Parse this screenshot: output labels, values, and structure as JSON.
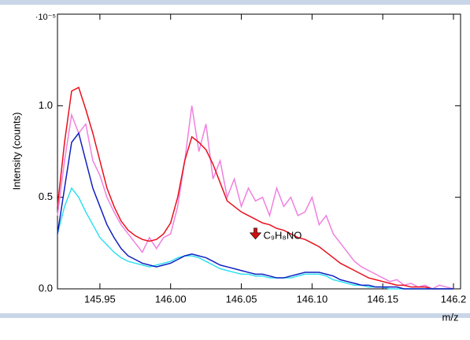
{
  "chart_data": {
    "type": "line",
    "y_axis_label": "Intensity (counts)",
    "y_unit": "·10⁻⁵",
    "x_axis_label": "m/z",
    "xlim": [
      145.92,
      146.205
    ],
    "ylim": [
      0,
      1.5
    ],
    "xticks": [
      145.95,
      {
        "value": 146,
        "label": "146.00"
      },
      146.05,
      {
        "value": 146.1,
        "label": "146.10"
      },
      146.15,
      {
        "value": 146.2,
        "label": "146.2"
      }
    ],
    "yticks": [
      {
        "value": 0,
        "label": "0.0"
      },
      {
        "value": 0.5,
        "label": "0.5"
      },
      {
        "value": 1,
        "label": "1.0"
      }
    ],
    "x": [
      145.92,
      145.925,
      145.93,
      145.935,
      145.94,
      145.945,
      145.95,
      145.955,
      145.96,
      145.965,
      145.97,
      145.975,
      145.98,
      145.985,
      145.99,
      145.995,
      146.0,
      146.005,
      146.01,
      146.015,
      146.02,
      146.025,
      146.03,
      146.035,
      146.04,
      146.045,
      146.05,
      146.055,
      146.06,
      146.065,
      146.07,
      146.075,
      146.08,
      146.085,
      146.09,
      146.095,
      146.1,
      146.105,
      146.11,
      146.115,
      146.12,
      146.125,
      146.13,
      146.135,
      146.14,
      146.145,
      146.15,
      146.155,
      146.16,
      146.165,
      146.17,
      146.175,
      146.18,
      146.185,
      146.19,
      146.195,
      146.2
    ],
    "series": [
      {
        "color": "#f080e0",
        "values": [
          0.4,
          0.7,
          0.95,
          0.85,
          0.9,
          0.7,
          0.62,
          0.5,
          0.42,
          0.35,
          0.3,
          0.25,
          0.2,
          0.28,
          0.22,
          0.28,
          0.3,
          0.45,
          0.7,
          1.0,
          0.75,
          0.9,
          0.6,
          0.7,
          0.5,
          0.6,
          0.45,
          0.55,
          0.48,
          0.5,
          0.4,
          0.55,
          0.45,
          0.5,
          0.4,
          0.42,
          0.5,
          0.35,
          0.4,
          0.3,
          0.25,
          0.2,
          0.15,
          0.12,
          0.1,
          0.08,
          0.06,
          0.04,
          0.05,
          0.02,
          0.03,
          0.01,
          0.02,
          0.0,
          0.02,
          0.01,
          0.0
        ]
      },
      {
        "color": "#e8101c",
        "values": [
          0.45,
          0.8,
          1.08,
          1.1,
          0.98,
          0.85,
          0.7,
          0.55,
          0.45,
          0.37,
          0.32,
          0.29,
          0.27,
          0.26,
          0.27,
          0.3,
          0.36,
          0.5,
          0.7,
          0.83,
          0.8,
          0.76,
          0.68,
          0.58,
          0.48,
          0.45,
          0.42,
          0.4,
          0.38,
          0.36,
          0.35,
          0.33,
          0.32,
          0.3,
          0.28,
          0.27,
          0.25,
          0.23,
          0.2,
          0.17,
          0.14,
          0.12,
          0.1,
          0.08,
          0.06,
          0.05,
          0.04,
          0.03,
          0.02,
          0.02,
          0.01,
          0.01,
          0.01,
          0.0,
          0.0,
          0.0,
          0.0
        ]
      },
      {
        "color": "#30e0f0",
        "values": [
          0.3,
          0.45,
          0.55,
          0.5,
          0.42,
          0.35,
          0.28,
          0.24,
          0.2,
          0.17,
          0.15,
          0.14,
          0.13,
          0.12,
          0.13,
          0.14,
          0.15,
          0.17,
          0.18,
          0.18,
          0.17,
          0.15,
          0.13,
          0.11,
          0.1,
          0.09,
          0.08,
          0.08,
          0.07,
          0.07,
          0.06,
          0.06,
          0.06,
          0.06,
          0.07,
          0.08,
          0.08,
          0.08,
          0.07,
          0.05,
          0.04,
          0.03,
          0.02,
          0.02,
          0.01,
          0.01,
          0.01,
          0.0,
          0.0,
          0.0,
          0.0,
          0.0,
          0.0,
          0.0,
          0.0,
          0.0,
          0.0
        ]
      },
      {
        "color": "#1020c0",
        "values": [
          0.3,
          0.55,
          0.8,
          0.85,
          0.7,
          0.55,
          0.45,
          0.35,
          0.28,
          0.22,
          0.18,
          0.16,
          0.14,
          0.13,
          0.12,
          0.13,
          0.14,
          0.16,
          0.18,
          0.19,
          0.18,
          0.17,
          0.15,
          0.13,
          0.12,
          0.11,
          0.1,
          0.09,
          0.08,
          0.08,
          0.07,
          0.06,
          0.06,
          0.07,
          0.08,
          0.09,
          0.09,
          0.09,
          0.08,
          0.07,
          0.05,
          0.04,
          0.03,
          0.02,
          0.02,
          0.01,
          0.01,
          0.01,
          0.01,
          0.0,
          0.0,
          0.0,
          0.0,
          0.0,
          0.0,
          0.0,
          0.0
        ]
      }
    ],
    "annotation": {
      "text": "C₉H₈NO",
      "x": 146.06,
      "y": 0.28,
      "color": "#d01010"
    }
  }
}
